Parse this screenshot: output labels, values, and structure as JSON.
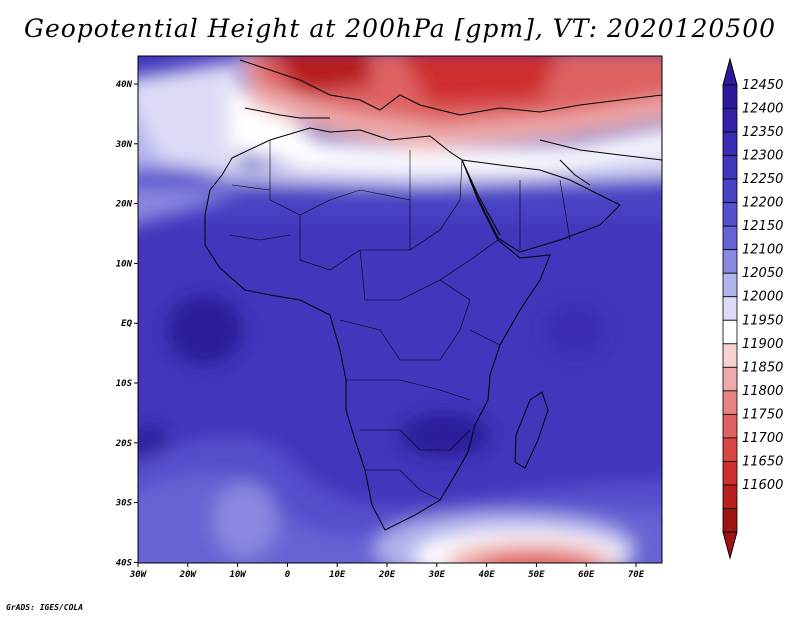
{
  "title": "Geopotential Height at 200hPa [gpm], VT: 2020120500",
  "credit": "GrADS: IGES/COLA",
  "map": {
    "lon_ticks": [
      "30W",
      "20W",
      "10W",
      "0",
      "10E",
      "20E",
      "30E",
      "40E",
      "50E",
      "60E",
      "70E"
    ],
    "lat_ticks": [
      "40N",
      "30N",
      "20N",
      "10N",
      "EQ",
      "10S",
      "20S",
      "30S",
      "40S"
    ],
    "lon_range": [
      -30,
      75
    ],
    "lat_range": [
      -40,
      44
    ]
  },
  "colorbar": {
    "levels": [
      "12450",
      "12400",
      "12350",
      "12300",
      "12250",
      "12200",
      "12150",
      "12100",
      "12050",
      "12000",
      "11950",
      "11900",
      "11850",
      "11800",
      "11750",
      "11700",
      "11650",
      "11600"
    ],
    "colors": [
      "#2b1a9a",
      "#3322a8",
      "#3a2cb4",
      "#4236bc",
      "#4a42c4",
      "#5650cc",
      "#6763d4",
      "#8a88e0",
      "#b4b4ec",
      "#dcdcf6",
      "#ffffff",
      "#f7d2d2",
      "#eeaaaa",
      "#e68484",
      "#de6262",
      "#d84646",
      "#cf2e2e",
      "#b81f1f",
      "#9c1414"
    ],
    "arrow_top_color": "#2b1a9a",
    "arrow_bottom_color": "#9c1414"
  }
}
